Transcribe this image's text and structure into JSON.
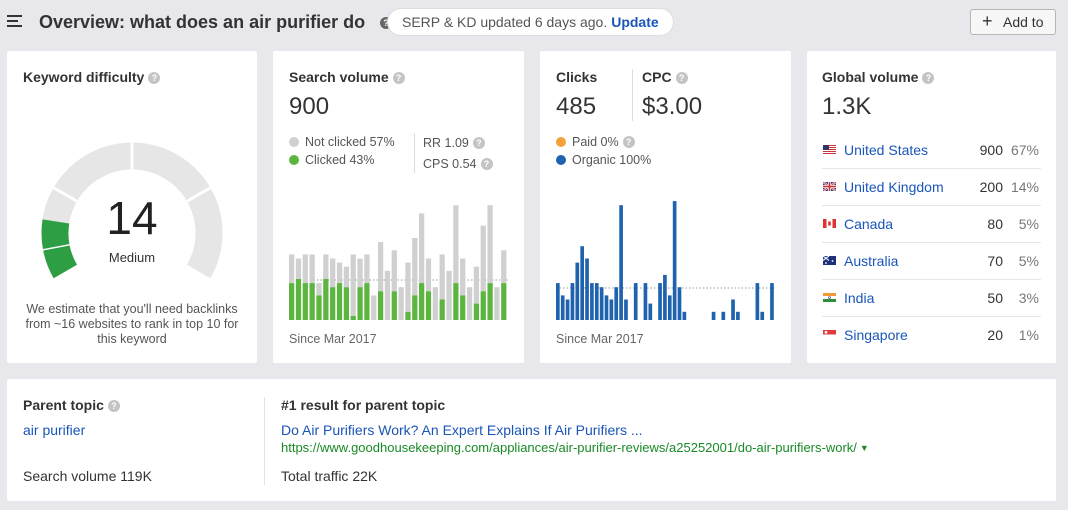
{
  "header": {
    "title": "Overview: what does an air purifier do",
    "serp_status": "SERP & KD updated 6 days ago.",
    "update_label": "Update",
    "add_to_label": "Add to"
  },
  "kd": {
    "title": "Keyword difficulty",
    "score": "14",
    "score_value": 14,
    "level": "Medium",
    "description": "We estimate that you'll need backlinks from ~16 websites to rank in top 10 for this keyword",
    "gauge_color": "#2e9e44",
    "track_color": "#e6e6e6"
  },
  "search_volume": {
    "title": "Search volume",
    "value": "900",
    "not_clicked": "Not clicked 57%",
    "clicked": "Clicked 43%",
    "rr": "RR 1.09",
    "cps": "CPS 0.54",
    "since": "Since Mar 2017",
    "colors": {
      "not_clicked": "#d0d0d0",
      "clicked": "#5bb53f"
    }
  },
  "clicks_cpc": {
    "clicks_title": "Clicks",
    "clicks_value": "485",
    "cpc_title": "CPC",
    "cpc_value": "$3.00",
    "paid": "Paid 0%",
    "organic": "Organic 100%",
    "since": "Since Mar 2017",
    "colors": {
      "paid": "#f5a13a",
      "organic": "#1f62ae"
    }
  },
  "global_volume": {
    "title": "Global volume",
    "value": "1.3K",
    "countries": [
      {
        "name": "United States",
        "volume": "900",
        "percent": "67%",
        "flag": "us"
      },
      {
        "name": "United Kingdom",
        "volume": "200",
        "percent": "14%",
        "flag": "uk"
      },
      {
        "name": "Canada",
        "volume": "80",
        "percent": "5%",
        "flag": "ca"
      },
      {
        "name": "Australia",
        "volume": "70",
        "percent": "5%",
        "flag": "au"
      },
      {
        "name": "India",
        "volume": "50",
        "percent": "3%",
        "flag": "in"
      },
      {
        "name": "Singapore",
        "volume": "20",
        "percent": "1%",
        "flag": "sg"
      }
    ]
  },
  "parent_topic": {
    "title": "Parent topic",
    "topic": "air purifier",
    "search_volume": "Search volume 119K",
    "result_title": "#1 result for parent topic",
    "result_link": "Do Air Purifiers Work? An Expert Explains If Air Purifiers ...",
    "result_url": "https://www.goodhousekeeping.com/appliances/air-purifier-reviews/a25252001/do-air-purifiers-work/",
    "total_traffic": "Total traffic 22K"
  },
  "chart_data": [
    {
      "type": "bar",
      "subtype": "stacked",
      "series": [
        {
          "name": "Clicked",
          "values": [
            4.5,
            5,
            4.5,
            4.5,
            3,
            5,
            4,
            4.5,
            4,
            0.5,
            4,
            4.5,
            0,
            3.5,
            0,
            3.5,
            0,
            1,
            3,
            4.5,
            3.5,
            0,
            2.5,
            0,
            4.5,
            3,
            0,
            2,
            3.5,
            4.5,
            0,
            4.5
          ]
        },
        {
          "name": "Not clicked",
          "values": [
            3.5,
            2.5,
            3.5,
            3.5,
            1.5,
            3,
            3.5,
            2.5,
            2.5,
            7.5,
            3.5,
            3.5,
            3,
            6,
            6,
            5,
            4,
            6,
            7,
            8.5,
            4,
            4,
            5.5,
            6,
            9.5,
            4.5,
            4,
            4.5,
            8,
            9.5,
            4,
            4
          ]
        }
      ]
    },
    {
      "type": "bar",
      "series": [
        {
          "name": "Organic",
          "values": [
            4.5,
            3,
            2.5,
            4.5,
            7,
            9,
            7.5,
            4.5,
            4.5,
            4,
            3,
            2.5,
            4,
            14,
            2.5,
            0,
            4.5,
            0,
            4.5,
            2,
            0,
            4.5,
            5.5,
            3,
            14.5,
            4,
            1,
            0,
            0,
            0,
            0,
            0,
            1,
            0,
            1,
            0,
            2.5,
            1,
            0,
            0,
            0,
            4.5,
            1,
            0,
            4.5
          ]
        }
      ]
    }
  ]
}
